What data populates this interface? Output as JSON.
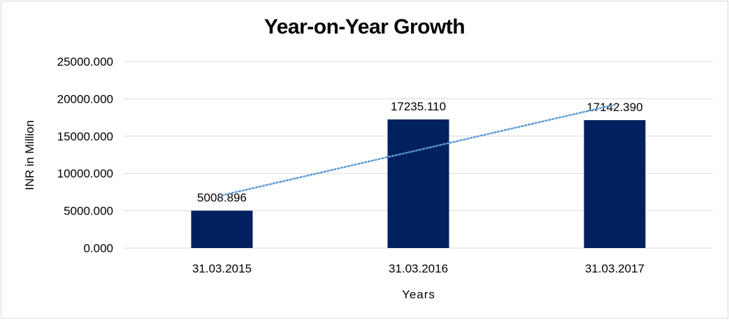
{
  "chart_data": {
    "type": "bar",
    "title": "Year-on-Year Growth",
    "xlabel": "Years",
    "ylabel": "INR in Million",
    "categories": [
      "31.03.2015",
      "31.03.2016",
      "31.03.2017"
    ],
    "values": [
      5008.896,
      17235.11,
      17142.39
    ],
    "value_labels": [
      "5008.896",
      "17235.110",
      "17142.390"
    ],
    "yticks": [
      "0.000",
      "5000.000",
      "10000.000",
      "15000.000",
      "20000.000",
      "25000.000"
    ],
    "ytick_values": [
      0,
      5000,
      10000,
      15000,
      20000,
      25000
    ],
    "ylim": [
      0,
      25000
    ],
    "grid": true,
    "legend": "none",
    "trendline": {
      "type": "linear",
      "style": "dotted",
      "color": "#5b9bd5"
    },
    "colors": {
      "bar": "#002060",
      "grid": "#d9d9d9"
    }
  }
}
